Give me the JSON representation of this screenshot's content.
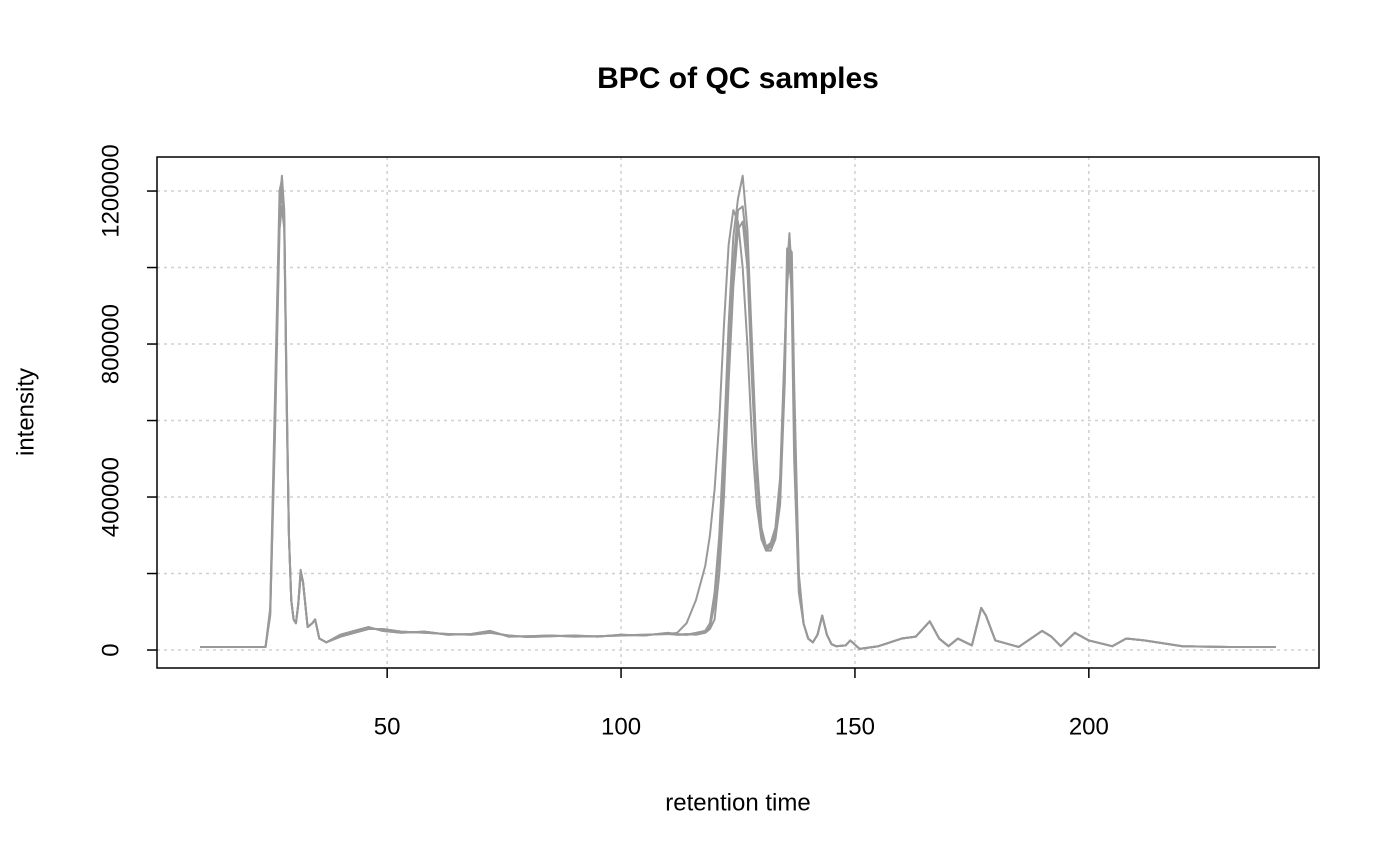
{
  "chart_data": {
    "type": "line",
    "title": "BPC of QC samples",
    "x_label": "retention time",
    "y_label": "intensity",
    "xlim": [
      0.8,
      249.2
    ],
    "ylim": [
      -47000,
      1289000
    ],
    "xticks": [
      50,
      100,
      150,
      200
    ],
    "yticks": [
      0,
      {
        "value": 200000,
        "label": null
      },
      400000,
      {
        "value": 600000,
        "label": null
      },
      800000,
      {
        "value": 1000000,
        "label": null
      },
      1200000
    ],
    "grid": true,
    "x": [
      10,
      24,
      25,
      26,
      27,
      27.5,
      28,
      28.5,
      29,
      29.5,
      30,
      30.5,
      31,
      31.5,
      32,
      33,
      34,
      34.6,
      35.5,
      37,
      40,
      43,
      46,
      49,
      53,
      58,
      63,
      68,
      72,
      76,
      80,
      85,
      90,
      95,
      100,
      105,
      110,
      112,
      114,
      116,
      118,
      119,
      120,
      121,
      122,
      123,
      124,
      125,
      126,
      127,
      128,
      129,
      130,
      131,
      132,
      133,
      134,
      135,
      135.5,
      136,
      136.5,
      137,
      138,
      139,
      140,
      141,
      142,
      143,
      144,
      145,
      146,
      148,
      149,
      151,
      155,
      160,
      163,
      166,
      168,
      170,
      172,
      175,
      177,
      178,
      180,
      185,
      190,
      192,
      194,
      197,
      200,
      205,
      208,
      212,
      220,
      230,
      240
    ],
    "series": [
      {
        "color": "#999999",
        "values": [
          8000,
          8000,
          100000,
          600000,
          1150000,
          1240000,
          1150000,
          700000,
          300000,
          130000,
          80000,
          70000,
          120000,
          200000,
          180000,
          60000,
          70000,
          80000,
          30000,
          20000,
          40000,
          50000,
          60000,
          50000,
          45000,
          48000,
          40000,
          42000,
          50000,
          35000,
          36000,
          38000,
          35000,
          36000,
          38000,
          40000,
          42000,
          45000,
          70000,
          130000,
          220000,
          300000,
          420000,
          600000,
          850000,
          1060000,
          1150000,
          1120000,
          1000000,
          800000,
          550000,
          380000,
          290000,
          260000,
          260000,
          290000,
          380000,
          700000,
          1000000,
          1090000,
          900000,
          500000,
          150000,
          70000,
          30000,
          20000,
          40000,
          90000,
          40000,
          15000,
          10000,
          12000,
          25000,
          3000,
          10000,
          30000,
          35000,
          75000,
          30000,
          10000,
          30000,
          12000,
          110000,
          90000,
          25000,
          8000,
          50000,
          35000,
          10000,
          45000,
          25000,
          10000,
          30000,
          25000,
          10000,
          8000,
          8000
        ]
      },
      {
        "color": "#999999",
        "values": [
          8000,
          8000,
          90000,
          550000,
          1100000,
          1160000,
          1100000,
          650000,
          300000,
          130000,
          80000,
          70000,
          120000,
          210000,
          180000,
          60000,
          70000,
          80000,
          30000,
          20000,
          35000,
          45000,
          55000,
          55000,
          48000,
          45000,
          42000,
          40000,
          45000,
          38000,
          34000,
          36000,
          38000,
          35000,
          40000,
          38000,
          45000,
          40000,
          40000,
          45000,
          50000,
          70000,
          150000,
          300000,
          550000,
          850000,
          1080000,
          1180000,
          1240000,
          1100000,
          800000,
          500000,
          320000,
          270000,
          280000,
          320000,
          450000,
          800000,
          950000,
          1050000,
          1040000,
          700000,
          200000,
          70000,
          30000,
          20000,
          40000,
          90000,
          40000,
          15000,
          10000,
          12000,
          25000,
          3000,
          10000,
          30000,
          35000,
          75000,
          30000,
          10000,
          30000,
          12000,
          110000,
          90000,
          25000,
          8000,
          50000,
          35000,
          10000,
          45000,
          25000,
          10000,
          30000,
          25000,
          10000,
          8000,
          8000
        ]
      },
      {
        "color": "#999999",
        "values": [
          8000,
          8000,
          110000,
          650000,
          1200000,
          1230000,
          1120000,
          680000,
          300000,
          130000,
          80000,
          70000,
          120000,
          200000,
          180000,
          60000,
          70000,
          80000,
          30000,
          20000,
          40000,
          50000,
          60000,
          50000,
          45000,
          48000,
          40000,
          42000,
          50000,
          35000,
          36000,
          38000,
          35000,
          36000,
          38000,
          40000,
          42000,
          40000,
          42000,
          40000,
          45000,
          55000,
          80000,
          200000,
          400000,
          700000,
          950000,
          1100000,
          1120000,
          1000000,
          700000,
          450000,
          300000,
          260000,
          270000,
          300000,
          420000,
          750000,
          1050000,
          1000000,
          950000,
          600000,
          180000,
          70000,
          30000,
          20000,
          40000,
          90000,
          40000,
          15000,
          10000,
          12000,
          25000,
          3000,
          10000,
          30000,
          35000,
          75000,
          30000,
          10000,
          30000,
          12000,
          110000,
          90000,
          25000,
          8000,
          50000,
          35000,
          10000,
          45000,
          25000,
          10000,
          30000,
          25000,
          10000,
          8000,
          8000
        ]
      },
      {
        "color": "#999999",
        "values": [
          8000,
          8000,
          95000,
          580000,
          1130000,
          1200000,
          1130000,
          660000,
          300000,
          130000,
          80000,
          70000,
          120000,
          190000,
          180000,
          60000,
          70000,
          80000,
          30000,
          20000,
          35000,
          45000,
          55000,
          55000,
          48000,
          45000,
          42000,
          40000,
          45000,
          38000,
          34000,
          36000,
          38000,
          35000,
          40000,
          38000,
          45000,
          42000,
          40000,
          42000,
          48000,
          60000,
          120000,
          260000,
          480000,
          780000,
          1000000,
          1150000,
          1160000,
          1050000,
          750000,
          480000,
          310000,
          265000,
          275000,
          310000,
          430000,
          780000,
          1000000,
          1080000,
          1000000,
          650000,
          190000,
          70000,
          30000,
          20000,
          40000,
          90000,
          40000,
          15000,
          10000,
          12000,
          25000,
          3000,
          10000,
          30000,
          35000,
          75000,
          30000,
          10000,
          30000,
          12000,
          110000,
          90000,
          25000,
          8000,
          50000,
          35000,
          10000,
          45000,
          25000,
          10000,
          30000,
          25000,
          10000,
          8000,
          8000
        ]
      }
    ]
  }
}
